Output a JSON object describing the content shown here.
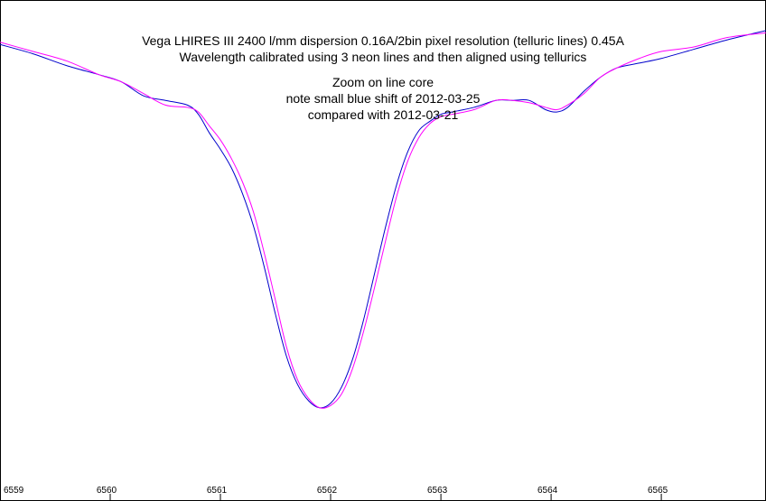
{
  "chart_data": {
    "type": "line",
    "title_lines": [
      "Vega   LHIRES III 2400 l/mm   dispersion 0.16A/2bin pixel  resolution (telluric lines) 0.45A",
      "Wavelength calibrated using 3 neon lines and then aligned using tellurics"
    ],
    "annotation_lines": [
      "Zoom on line core",
      "note small blue shift of  2012-03-25",
      "compared with 2012-03-21"
    ],
    "xlabel": "",
    "ylabel": "",
    "xlim": [
      6559.0,
      6565.95
    ],
    "ylim": [
      0.0,
      1.0
    ],
    "x_ticks": [
      6559,
      6560,
      6561,
      6562,
      6563,
      6564,
      6565
    ],
    "x_tick_labels": [
      "6559",
      "6560",
      "6561",
      "6562",
      "6563",
      "6564",
      "6565"
    ],
    "grid": false,
    "series": [
      {
        "name": "2012-03-25",
        "color": "#0000cc",
        "x": [
          6559.0,
          6559.3,
          6559.6,
          6559.9,
          6560.1,
          6560.3,
          6560.5,
          6560.7,
          6560.8,
          6560.9,
          6561.0,
          6561.1,
          6561.2,
          6561.3,
          6561.4,
          6561.5,
          6561.6,
          6561.7,
          6561.8,
          6561.9,
          6562.0,
          6562.1,
          6562.2,
          6562.3,
          6562.4,
          6562.5,
          6562.6,
          6562.7,
          6562.8,
          6562.9,
          6563.0,
          6563.1,
          6563.3,
          6563.5,
          6563.65,
          6563.8,
          6563.95,
          6564.05,
          6564.15,
          6564.3,
          6564.45,
          6564.6,
          6564.8,
          6565.0,
          6565.3,
          6565.6,
          6565.95
        ],
        "values": [
          0.92,
          0.9,
          0.875,
          0.855,
          0.84,
          0.81,
          0.8,
          0.79,
          0.77,
          0.73,
          0.695,
          0.655,
          0.6,
          0.53,
          0.44,
          0.34,
          0.25,
          0.19,
          0.155,
          0.14,
          0.15,
          0.185,
          0.245,
          0.33,
          0.43,
          0.53,
          0.62,
          0.69,
          0.735,
          0.755,
          0.77,
          0.775,
          0.785,
          0.8,
          0.8,
          0.8,
          0.78,
          0.775,
          0.785,
          0.82,
          0.85,
          0.87,
          0.88,
          0.89,
          0.91,
          0.93,
          0.95
        ]
      },
      {
        "name": "2012-03-21",
        "color": "#ff00ff",
        "x": [
          6559.0,
          6559.3,
          6559.6,
          6559.9,
          6560.1,
          6560.3,
          6560.5,
          6560.7,
          6560.8,
          6560.9,
          6561.0,
          6561.1,
          6561.2,
          6561.3,
          6561.4,
          6561.5,
          6561.6,
          6561.7,
          6561.8,
          6561.9,
          6562.0,
          6562.1,
          6562.2,
          6562.3,
          6562.4,
          6562.5,
          6562.6,
          6562.7,
          6562.8,
          6562.9,
          6563.0,
          6563.1,
          6563.3,
          6563.5,
          6563.65,
          6563.8,
          6563.95,
          6564.05,
          6564.15,
          6564.3,
          6564.45,
          6564.6,
          6564.8,
          6565.0,
          6565.3,
          6565.6,
          6565.95
        ],
        "values": [
          0.925,
          0.905,
          0.885,
          0.855,
          0.84,
          0.815,
          0.79,
          0.785,
          0.775,
          0.745,
          0.715,
          0.675,
          0.625,
          0.56,
          0.47,
          0.37,
          0.27,
          0.2,
          0.16,
          0.14,
          0.145,
          0.17,
          0.225,
          0.305,
          0.4,
          0.5,
          0.595,
          0.67,
          0.72,
          0.75,
          0.765,
          0.77,
          0.78,
          0.8,
          0.8,
          0.795,
          0.785,
          0.78,
          0.79,
          0.815,
          0.85,
          0.87,
          0.89,
          0.905,
          0.915,
          0.935,
          0.945
        ]
      }
    ]
  }
}
